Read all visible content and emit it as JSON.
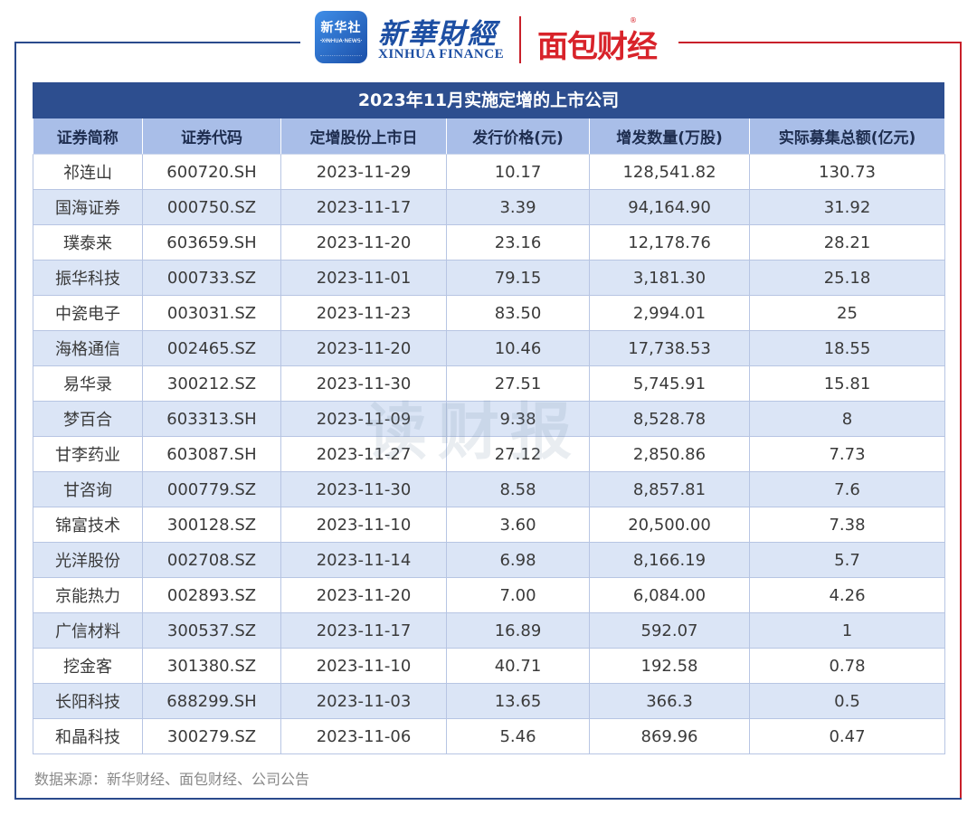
{
  "header": {
    "xinhua_badge_cn": "新华社",
    "xinhua_badge_en": "XINHUA NEWS",
    "xinhua_finance_cn": "新華財經",
    "xinhua_finance_en": "XINHUA FINANCE",
    "mianbao_logo": "面包财经",
    "mianbao_reg": "®"
  },
  "table": {
    "title": "2023年11月实施定增的上市公司",
    "columns": [
      "证券简称",
      "证券代码",
      "定增股份上市日",
      "发行价格(元)",
      "增发数量(万股)",
      "实际募集总额(亿元)"
    ],
    "rows": [
      [
        "祁连山",
        "600720.SH",
        "2023-11-29",
        "10.17",
        "128,541.82",
        "130.73"
      ],
      [
        "国海证券",
        "000750.SZ",
        "2023-11-17",
        "3.39",
        "94,164.90",
        "31.92"
      ],
      [
        "璞泰来",
        "603659.SH",
        "2023-11-20",
        "23.16",
        "12,178.76",
        "28.21"
      ],
      [
        "振华科技",
        "000733.SZ",
        "2023-11-01",
        "79.15",
        "3,181.30",
        "25.18"
      ],
      [
        "中瓷电子",
        "003031.SZ",
        "2023-11-23",
        "83.50",
        "2,994.01",
        "25"
      ],
      [
        "海格通信",
        "002465.SZ",
        "2023-11-20",
        "10.46",
        "17,738.53",
        "18.55"
      ],
      [
        "易华录",
        "300212.SZ",
        "2023-11-30",
        "27.51",
        "5,745.91",
        "15.81"
      ],
      [
        "梦百合",
        "603313.SH",
        "2023-11-09",
        "9.38",
        "8,528.78",
        "8"
      ],
      [
        "甘李药业",
        "603087.SH",
        "2023-11-27",
        "27.12",
        "2,850.86",
        "7.73"
      ],
      [
        "甘咨询",
        "000779.SZ",
        "2023-11-30",
        "8.58",
        "8,857.81",
        "7.6"
      ],
      [
        "锦富技术",
        "300128.SZ",
        "2023-11-10",
        "3.60",
        "20,500.00",
        "7.38"
      ],
      [
        "光洋股份",
        "002708.SZ",
        "2023-11-14",
        "6.98",
        "8,166.19",
        "5.7"
      ],
      [
        "京能热力",
        "002893.SZ",
        "2023-11-20",
        "7.00",
        "6,084.00",
        "4.26"
      ],
      [
        "广信材料",
        "300537.SZ",
        "2023-11-17",
        "16.89",
        "592.07",
        "1"
      ],
      [
        "挖金客",
        "301380.SZ",
        "2023-11-10",
        "40.71",
        "192.58",
        "0.78"
      ],
      [
        "长阳科技",
        "688299.SH",
        "2023-11-03",
        "13.65",
        "366.3",
        "0.5"
      ],
      [
        "和晶科技",
        "300279.SZ",
        "2023-11-06",
        "5.46",
        "869.96",
        "0.47"
      ]
    ]
  },
  "watermark": "读财报",
  "source": "数据来源：新华财经、面包财经、公司公告",
  "colors": {
    "title_bg": "#2d4e8f",
    "header_bg": "#a9bee8",
    "stripe_bg": "#dbe5f6",
    "frame_left": "#2a4a8c",
    "frame_right": "#c8202a"
  }
}
